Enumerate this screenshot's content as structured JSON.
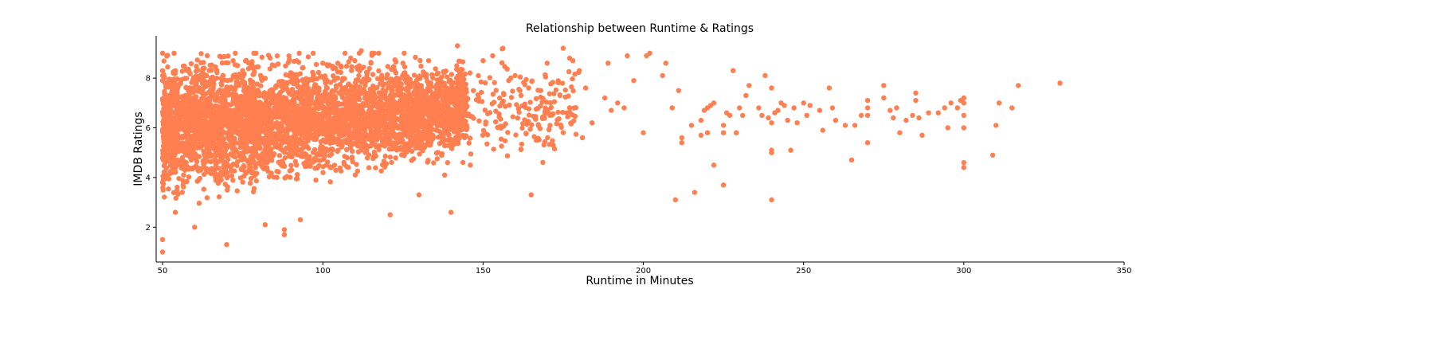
{
  "chart_data": {
    "type": "scatter",
    "title": "Relationship between Runtime & Ratings",
    "xlabel": "Runtime in Minutes",
    "ylabel": "IMDB Ratings",
    "xlim": [
      48,
      350
    ],
    "ylim": [
      0.6,
      9.7
    ],
    "xticks": [
      50,
      100,
      150,
      200,
      250,
      300,
      350
    ],
    "yticks": [
      2,
      4,
      6,
      8
    ],
    "marker_color": "#ff7f50",
    "grid": false,
    "legend": "none",
    "spines": [
      "left",
      "bottom"
    ],
    "dense_region": {
      "description_hidden": true,
      "x_range": [
        50,
        145
      ],
      "center_y_start": 6.0,
      "center_y_end": 6.8,
      "spread": 1.2
    },
    "points": [
      [
        50,
        9.0
      ],
      [
        50,
        8.3
      ],
      [
        50,
        8.1
      ],
      [
        50,
        7.9
      ],
      [
        50,
        3.8
      ],
      [
        50,
        1.5
      ],
      [
        50,
        1.0
      ],
      [
        51,
        5.5
      ],
      [
        54,
        8.3
      ],
      [
        54,
        2.6
      ],
      [
        60,
        2.0
      ],
      [
        63,
        8.4
      ],
      [
        70,
        1.3
      ],
      [
        72,
        8.7
      ],
      [
        75,
        8.3
      ],
      [
        78,
        8.5
      ],
      [
        82,
        2.1
      ],
      [
        85,
        8.5
      ],
      [
        88,
        1.9
      ],
      [
        88,
        1.7
      ],
      [
        93,
        2.3
      ],
      [
        97,
        9.0
      ],
      [
        100,
        8.6
      ],
      [
        104,
        8.4
      ],
      [
        110,
        8.7
      ],
      [
        112,
        9.1
      ],
      [
        115,
        8.6
      ],
      [
        121,
        2.5
      ],
      [
        125,
        8.6
      ],
      [
        130,
        3.3
      ],
      [
        133,
        8.7
      ],
      [
        138,
        4.1
      ],
      [
        140,
        2.6
      ],
      [
        142,
        9.3
      ],
      [
        146,
        4.5
      ],
      [
        150,
        8.7
      ],
      [
        153,
        8.9
      ],
      [
        158,
        7.9
      ],
      [
        160,
        8.1
      ],
      [
        165,
        3.3
      ],
      [
        168,
        7.5
      ],
      [
        170,
        8.6
      ],
      [
        174,
        7.3
      ],
      [
        175,
        9.2
      ],
      [
        177,
        8.8
      ],
      [
        178,
        8.7
      ],
      [
        180,
        8.3
      ],
      [
        181,
        5.6
      ],
      [
        182,
        7.6
      ],
      [
        184,
        6.2
      ],
      [
        188,
        7.2
      ],
      [
        189,
        8.6
      ],
      [
        190,
        6.7
      ],
      [
        192,
        7.0
      ],
      [
        194,
        6.8
      ],
      [
        195,
        8.9
      ],
      [
        197,
        7.9
      ],
      [
        200,
        5.8
      ],
      [
        201,
        8.9
      ],
      [
        202,
        9.0
      ],
      [
        206,
        8.1
      ],
      [
        207,
        8.6
      ],
      [
        209,
        6.8
      ],
      [
        210,
        3.1
      ],
      [
        211,
        7.5
      ],
      [
        212,
        5.4
      ],
      [
        212,
        5.6
      ],
      [
        215,
        6.1
      ],
      [
        216,
        3.4
      ],
      [
        218,
        5.7
      ],
      [
        218,
        6.3
      ],
      [
        219,
        6.7
      ],
      [
        220,
        5.8
      ],
      [
        220,
        6.8
      ],
      [
        221,
        6.9
      ],
      [
        222,
        4.5
      ],
      [
        222,
        7.0
      ],
      [
        225,
        3.7
      ],
      [
        225,
        5.8
      ],
      [
        225,
        6.1
      ],
      [
        226,
        6.6
      ],
      [
        227,
        6.5
      ],
      [
        228,
        8.3
      ],
      [
        229,
        5.8
      ],
      [
        230,
        6.8
      ],
      [
        231,
        6.5
      ],
      [
        232,
        7.3
      ],
      [
        233,
        7.7
      ],
      [
        236,
        6.8
      ],
      [
        237,
        6.5
      ],
      [
        238,
        8.1
      ],
      [
        239,
        6.4
      ],
      [
        240,
        3.1
      ],
      [
        240,
        5.0
      ],
      [
        240,
        5.1
      ],
      [
        240,
        6.2
      ],
      [
        240,
        7.6
      ],
      [
        241,
        6.6
      ],
      [
        242,
        6.7
      ],
      [
        243,
        7.0
      ],
      [
        244,
        6.9
      ],
      [
        245,
        6.3
      ],
      [
        246,
        5.1
      ],
      [
        247,
        6.8
      ],
      [
        248,
        6.2
      ],
      [
        250,
        7.0
      ],
      [
        251,
        6.5
      ],
      [
        252,
        6.9
      ],
      [
        255,
        6.7
      ],
      [
        256,
        5.9
      ],
      [
        258,
        7.6
      ],
      [
        259,
        6.8
      ],
      [
        260,
        6.3
      ],
      [
        263,
        6.1
      ],
      [
        265,
        4.7
      ],
      [
        266,
        6.1
      ],
      [
        268,
        6.5
      ],
      [
        270,
        5.4
      ],
      [
        270,
        6.5
      ],
      [
        270,
        6.8
      ],
      [
        270,
        7.1
      ],
      [
        275,
        7.2
      ],
      [
        275,
        7.7
      ],
      [
        277,
        6.7
      ],
      [
        278,
        6.4
      ],
      [
        279,
        6.8
      ],
      [
        280,
        5.8
      ],
      [
        282,
        6.3
      ],
      [
        284,
        6.5
      ],
      [
        285,
        7.1
      ],
      [
        285,
        7.4
      ],
      [
        286,
        6.4
      ],
      [
        287,
        5.7
      ],
      [
        289,
        6.6
      ],
      [
        292,
        6.6
      ],
      [
        294,
        6.8
      ],
      [
        295,
        6.0
      ],
      [
        296,
        7.0
      ],
      [
        298,
        6.8
      ],
      [
        299,
        7.1
      ],
      [
        300,
        4.4
      ],
      [
        300,
        4.6
      ],
      [
        300,
        6.0
      ],
      [
        300,
        6.5
      ],
      [
        300,
        7.0
      ],
      [
        300,
        7.2
      ],
      [
        309,
        4.9
      ],
      [
        310,
        6.1
      ],
      [
        311,
        7.0
      ],
      [
        315,
        6.8
      ],
      [
        317,
        7.7
      ],
      [
        330,
        7.8
      ]
    ]
  }
}
